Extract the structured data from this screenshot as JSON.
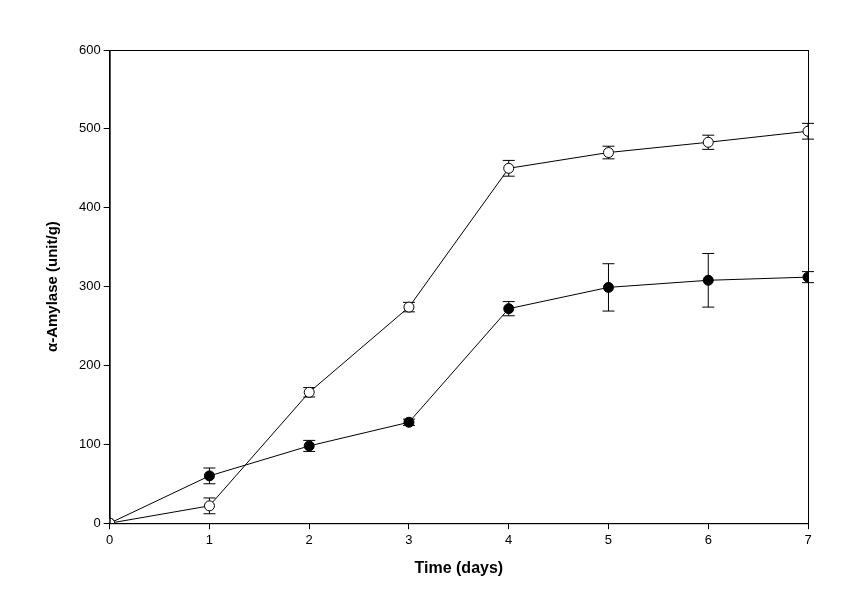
{
  "chart_data": {
    "type": "line",
    "x_label": "Time (days)",
    "y_label": "α-Amylase (unit/g)",
    "x": [
      0,
      1,
      2,
      3,
      4,
      5,
      6,
      7
    ],
    "series": [
      {
        "color": "#000000",
        "marker": "open_circle",
        "line_style": "solid",
        "values": [
          0,
          22,
          166,
          274,
          450,
          470,
          483,
          497
        ],
        "errors": [
          0,
          10,
          6,
          6,
          10,
          8,
          9,
          10
        ]
      },
      {
        "color": "#000000",
        "marker": "filled_circle",
        "line_style": "solid",
        "values": [
          0,
          60,
          98,
          128,
          272,
          299,
          308,
          312
        ],
        "errors": [
          0,
          10,
          7,
          4,
          9,
          30,
          34,
          7
        ]
      }
    ],
    "xlim": [
      0,
      7
    ],
    "xticks": [
      0,
      1,
      2,
      3,
      4,
      5,
      6,
      7
    ],
    "ylim": [
      0,
      600
    ],
    "yticks": [
      0,
      100,
      200,
      300,
      400,
      500,
      600
    ],
    "grid": false
  }
}
